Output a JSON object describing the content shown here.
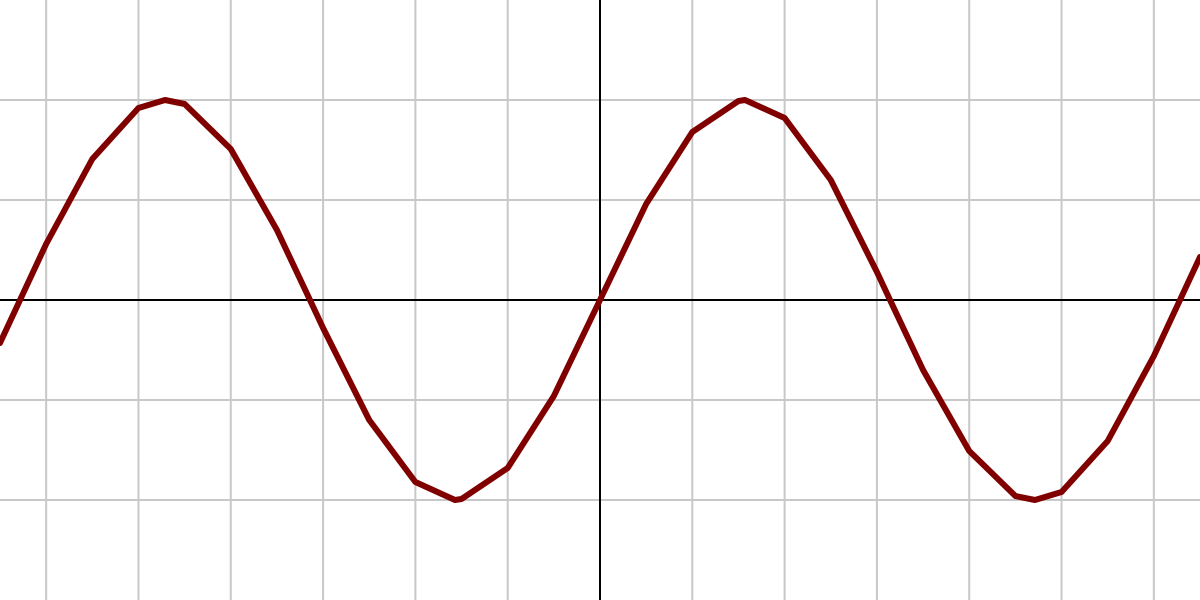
{
  "chart_data": {
    "type": "line",
    "title": "",
    "xlabel": "",
    "ylabel": "",
    "xlim": [
      -6.5,
      6.5
    ],
    "ylim": [
      -3,
      3
    ],
    "grid": true,
    "x_gridlines": [
      -6,
      -5,
      -4,
      -3,
      -2,
      -1,
      0,
      1,
      2,
      3,
      4,
      5,
      6
    ],
    "y_gridlines": [
      -2,
      -1,
      0,
      1,
      2
    ],
    "series": [
      {
        "function": "2*sin(x)",
        "color": "#800000",
        "x": [
          -6.5,
          -6.283,
          -6.0,
          -5.5,
          -5.0,
          -4.712,
          -4.5,
          -4.0,
          -3.5,
          -3.142,
          -3.0,
          -2.5,
          -2.0,
          -1.571,
          -1.5,
          -1.0,
          -0.5,
          0.0,
          0.5,
          1.0,
          1.5,
          1.571,
          2.0,
          2.5,
          3.0,
          3.142,
          3.5,
          4.0,
          4.5,
          4.712,
          5.0,
          5.5,
          6.0,
          6.283,
          6.5
        ],
        "y": [
          -0.43,
          0.0,
          0.56,
          1.41,
          1.92,
          2.0,
          1.96,
          1.51,
          0.7,
          0.0,
          -0.28,
          -1.2,
          -1.82,
          -2.0,
          -1.99,
          -1.68,
          -0.96,
          0.0,
          0.96,
          1.68,
          1.99,
          2.0,
          1.82,
          1.2,
          0.28,
          0.0,
          -0.7,
          -1.51,
          -1.96,
          -2.0,
          -1.92,
          -1.41,
          -0.56,
          0.0,
          0.43
        ]
      }
    ]
  },
  "colors": {
    "grid": "#c8c8c8",
    "axis": "#000000",
    "curve": "#800000",
    "background": "#ffffff"
  }
}
